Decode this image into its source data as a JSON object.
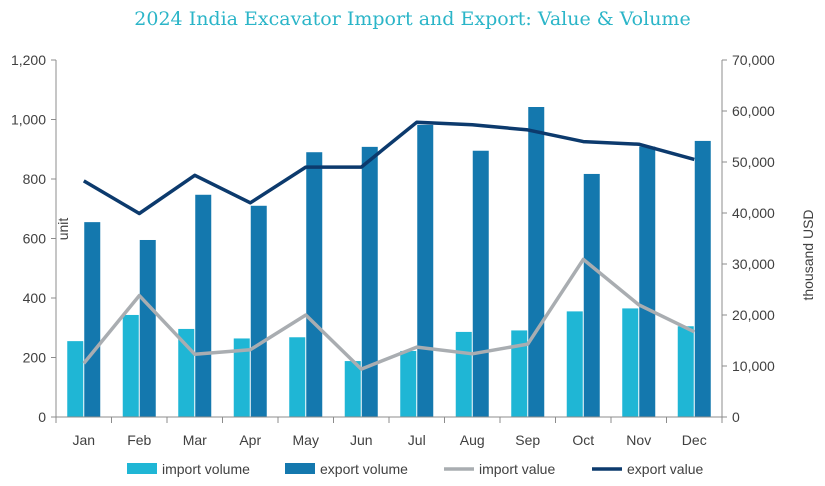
{
  "chart_data": {
    "type": "bar",
    "title": "2024 India Excavator Import and Export: Value & Volume",
    "categories": [
      "Jan",
      "Feb",
      "Mar",
      "Apr",
      "May",
      "Jun",
      "Jul",
      "Aug",
      "Sep",
      "Oct",
      "Nov",
      "Dec"
    ],
    "series": [
      {
        "name": "import volume",
        "type": "bar",
        "axis": "left",
        "values": [
          255,
          343,
          296,
          264,
          268,
          188,
          222,
          286,
          291,
          355,
          365,
          305
        ]
      },
      {
        "name": "export volume",
        "type": "bar",
        "axis": "left",
        "values": [
          655,
          595,
          747,
          710,
          890,
          908,
          982,
          895,
          1042,
          817,
          909,
          928
        ]
      },
      {
        "name": "import value",
        "type": "line",
        "axis": "right",
        "values": [
          10500,
          23800,
          12300,
          13200,
          20000,
          9400,
          13700,
          12400,
          14300,
          30900,
          22000,
          16700
        ]
      },
      {
        "name": "export value",
        "type": "line",
        "axis": "right",
        "values": [
          46300,
          39900,
          47400,
          42000,
          49000,
          49000,
          57800,
          57300,
          56300,
          54000,
          53500,
          50500
        ]
      }
    ],
    "ylabel": "unit",
    "y2label": "thousand USD",
    "ylim": [
      0,
      1200
    ],
    "y2lim": [
      0,
      70000
    ],
    "yticks": [
      "0",
      "200",
      "400",
      "600",
      "800",
      "1,000",
      "1,200"
    ],
    "y2ticks": [
      "0",
      "10,000",
      "20,000",
      "30,000",
      "40,000",
      "50,000",
      "60,000",
      "70,000"
    ],
    "colors": {
      "title": "#2bb5c8",
      "import_volume": "#1fb6d5",
      "export_volume": "#1478ae",
      "import_value": "#a9adb1",
      "export_value": "#0c3a6d",
      "axis": "#8c8c8c"
    },
    "legend_position": "bottom",
    "grid": false
  }
}
